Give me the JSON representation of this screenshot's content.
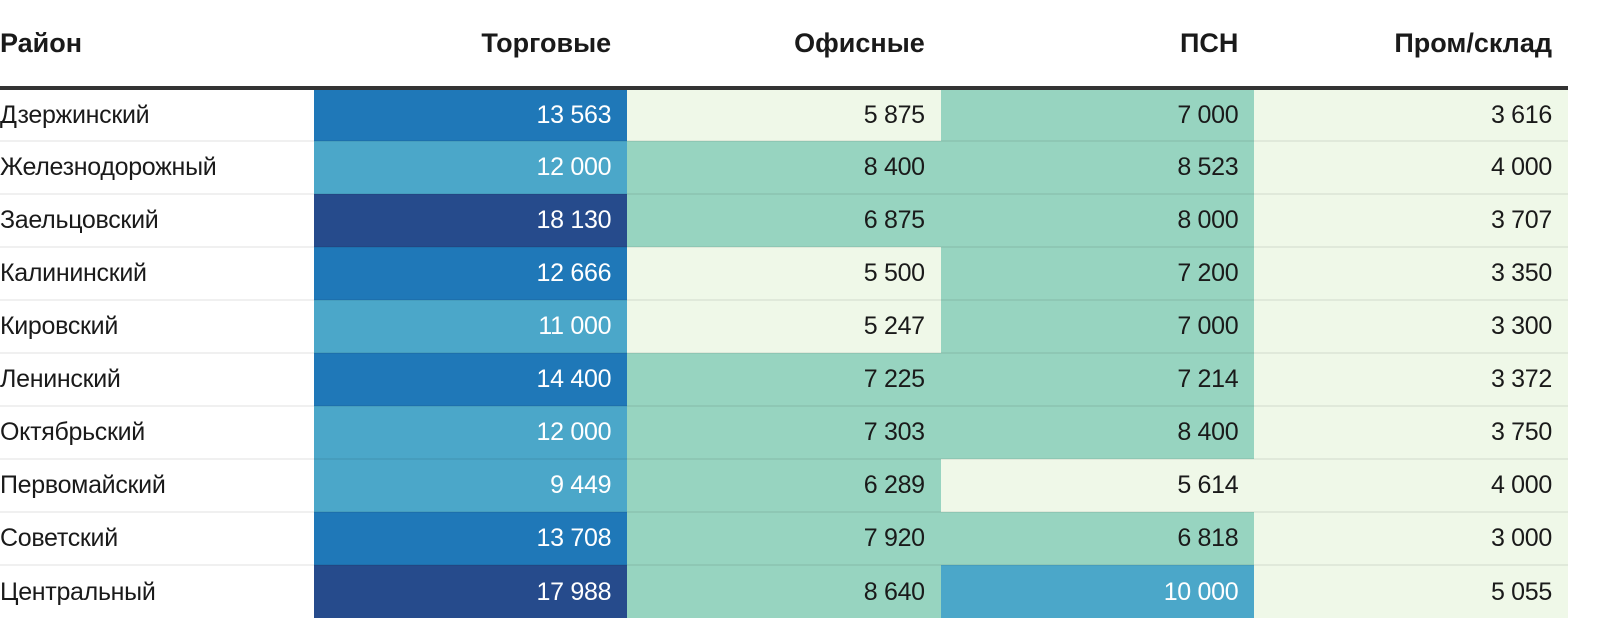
{
  "chart_data": {
    "type": "table",
    "columns": [
      "Район",
      "Торговые",
      "Офисные",
      "ПСН",
      "Пром/склад"
    ],
    "rows": [
      {
        "name": "Дзержинский",
        "values": [
          "13 563",
          "5 875",
          "7 000",
          "3 616"
        ]
      },
      {
        "name": "Железнодорожный",
        "values": [
          "12 000",
          "8 400",
          "8 523",
          "4 000"
        ]
      },
      {
        "name": "Заельцовский",
        "values": [
          "18 130",
          "6 875",
          "8 000",
          "3 707"
        ]
      },
      {
        "name": "Калининский",
        "values": [
          "12 666",
          "5 500",
          "7 200",
          "3 350"
        ]
      },
      {
        "name": "Кировский",
        "values": [
          "11 000",
          "5 247",
          "7 000",
          "3 300"
        ]
      },
      {
        "name": "Ленинский",
        "values": [
          "14 400",
          "7 225",
          "7 214",
          "3 372"
        ]
      },
      {
        "name": "Октябрьский",
        "values": [
          "12 000",
          "7 303",
          "8 400",
          "3 750"
        ]
      },
      {
        "name": "Первомайский",
        "values": [
          "9 449",
          "6 289",
          "5 614",
          "4 000"
        ]
      },
      {
        "name": "Советский",
        "values": [
          "13 708",
          "7 920",
          "6 818",
          "3 000"
        ]
      },
      {
        "name": "Центральный",
        "values": [
          "17 988",
          "8 640",
          "10 000",
          "5 055"
        ]
      }
    ],
    "color_scale": [
      {
        "min": 0,
        "color": "#eff8e8",
        "text": "#1a1a1a"
      },
      {
        "min": 6000,
        "color": "#97d4c0",
        "text": "#1a1a1a"
      },
      {
        "min": 9000,
        "color": "#4ba7c9",
        "text": "#ffffff"
      },
      {
        "min": 12500,
        "color": "#1f78b8",
        "text": "#ffffff"
      },
      {
        "min": 16000,
        "color": "#264b8c",
        "text": "#ffffff"
      }
    ]
  }
}
